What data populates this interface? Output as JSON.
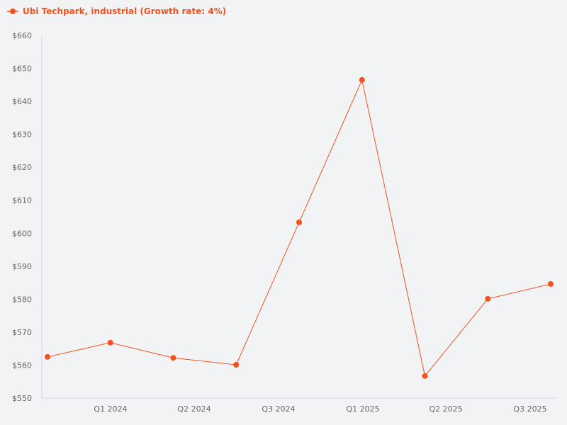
{
  "chart_data": {
    "type": "line",
    "title": "",
    "xlabel": "",
    "ylabel": "",
    "ylim": [
      550,
      660
    ],
    "yticks": [
      "$550",
      "$560",
      "$570",
      "$580",
      "$590",
      "$600",
      "$610",
      "$620",
      "$630",
      "$640",
      "$650",
      "$660"
    ],
    "xticks": [
      "Q1 2024",
      "Q2 2024",
      "Q3 2024",
      "Q1 2025",
      "Q2 2025",
      "Q3 2025"
    ],
    "grid": false,
    "legend_position": "top-left",
    "series": [
      {
        "name": "Ubi Techpark, industrial (Growth rate: 4%)",
        "color": "#f4511e",
        "values": [
          562.5,
          566.8,
          562.2,
          560.1,
          603.3,
          646.5,
          556.7,
          580.1,
          584.6
        ]
      }
    ]
  },
  "legend": {
    "label": "Ubi Techpark, industrial (Growth rate: 4%)"
  }
}
